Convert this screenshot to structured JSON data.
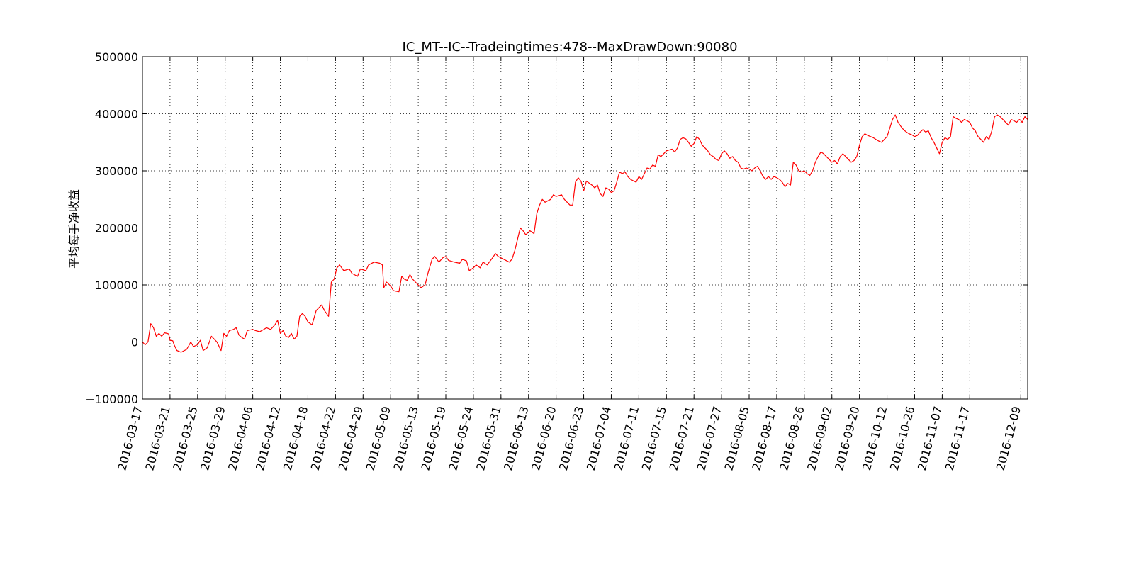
{
  "chart_data": {
    "type": "line",
    "title": "IC_MT--IC--Tradeingtimes:478--MaxDrawDown:90080",
    "xlabel": "",
    "ylabel": "平均每手净收益",
    "ylim": [
      -100000,
      500000
    ],
    "grid": true,
    "y_tick_labels": [
      "−100000",
      "0",
      "100000",
      "200000",
      "300000",
      "400000",
      "500000"
    ],
    "x_tick_labels": [
      "2016-03-17",
      "2016-03-21",
      "2016-03-25",
      "2016-03-29",
      "2016-04-06",
      "2016-04-12",
      "2016-04-18",
      "2016-04-22",
      "2016-04-29",
      "2016-05-09",
      "2016-05-13",
      "2016-05-19",
      "2016-05-24",
      "2016-05-31",
      "2016-06-13",
      "2016-06-20",
      "2016-06-23",
      "2016-07-04",
      "2016-07-11",
      "2016-07-15",
      "2016-07-21",
      "2016-07-27",
      "2016-08-05",
      "2016-08-17",
      "2016-08-26",
      "2016-09-02",
      "2016-09-20",
      "2016-10-12",
      "2016-10-26",
      "2016-11-07",
      "2016-11-17",
      "2016-12-09"
    ],
    "x_ticks_at_index": [
      0,
      20,
      40,
      60,
      80,
      100,
      120,
      140,
      160,
      180,
      200,
      220,
      240,
      260,
      280,
      300,
      320,
      340,
      360,
      380,
      400,
      420,
      440,
      460,
      480,
      500,
      520,
      540,
      560,
      580,
      600,
      637
    ],
    "x_range": [
      0,
      642
    ],
    "series": [
      {
        "color": "#ff0000",
        "anchors": [
          [
            0,
            0
          ],
          [
            2,
            -5000
          ],
          [
            4,
            0
          ],
          [
            6,
            32000
          ],
          [
            8,
            25000
          ],
          [
            10,
            10000
          ],
          [
            12,
            15000
          ],
          [
            14,
            10000
          ],
          [
            16,
            16000
          ],
          [
            18,
            15000
          ],
          [
            19,
            14000
          ],
          [
            20,
            3000
          ],
          [
            22,
            2000
          ],
          [
            23,
            -5000
          ],
          [
            25,
            -15000
          ],
          [
            28,
            -18000
          ],
          [
            32,
            -13000
          ],
          [
            34,
            -5000
          ],
          [
            35,
            0
          ],
          [
            37,
            -8000
          ],
          [
            40,
            -5000
          ],
          [
            42,
            3000
          ],
          [
            44,
            -15000
          ],
          [
            47,
            -10000
          ],
          [
            50,
            10000
          ],
          [
            54,
            0
          ],
          [
            57,
            -15000
          ],
          [
            59,
            15000
          ],
          [
            61,
            10000
          ],
          [
            63,
            20000
          ],
          [
            66,
            22000
          ],
          [
            68,
            25000
          ],
          [
            70,
            12000
          ],
          [
            72,
            8000
          ],
          [
            74,
            5000
          ],
          [
            76,
            20000
          ],
          [
            80,
            22000
          ],
          [
            82,
            20000
          ],
          [
            85,
            18000
          ],
          [
            88,
            22000
          ],
          [
            90,
            25000
          ],
          [
            93,
            22000
          ],
          [
            96,
            30000
          ],
          [
            98,
            38000
          ],
          [
            100,
            15000
          ],
          [
            102,
            20000
          ],
          [
            104,
            10000
          ],
          [
            106,
            8000
          ],
          [
            108,
            15000
          ],
          [
            110,
            5000
          ],
          [
            112,
            10000
          ],
          [
            114,
            45000
          ],
          [
            116,
            50000
          ],
          [
            118,
            45000
          ],
          [
            120,
            35000
          ],
          [
            123,
            30000
          ],
          [
            126,
            55000
          ],
          [
            128,
            60000
          ],
          [
            130,
            65000
          ],
          [
            132,
            55000
          ],
          [
            135,
            45000
          ],
          [
            137,
            105000
          ],
          [
            139,
            110000
          ],
          [
            141,
            130000
          ],
          [
            143,
            135000
          ],
          [
            146,
            125000
          ],
          [
            150,
            128000
          ],
          [
            152,
            120000
          ],
          [
            156,
            115000
          ],
          [
            158,
            128000
          ],
          [
            162,
            125000
          ],
          [
            164,
            135000
          ],
          [
            168,
            140000
          ],
          [
            172,
            138000
          ],
          [
            174,
            135000
          ],
          [
            175,
            95000
          ],
          [
            177,
            105000
          ],
          [
            180,
            98000
          ],
          [
            182,
            90000
          ],
          [
            186,
            88000
          ],
          [
            188,
            115000
          ],
          [
            190,
            110000
          ],
          [
            192,
            108000
          ],
          [
            194,
            118000
          ],
          [
            196,
            110000
          ],
          [
            198,
            105000
          ],
          [
            200,
            100000
          ],
          [
            202,
            95000
          ],
          [
            205,
            100000
          ],
          [
            207,
            120000
          ],
          [
            210,
            145000
          ],
          [
            212,
            150000
          ],
          [
            215,
            140000
          ],
          [
            218,
            148000
          ],
          [
            220,
            150000
          ],
          [
            222,
            143000
          ],
          [
            226,
            140000
          ],
          [
            230,
            138000
          ],
          [
            232,
            145000
          ],
          [
            235,
            142000
          ],
          [
            237,
            125000
          ],
          [
            240,
            130000
          ],
          [
            242,
            135000
          ],
          [
            245,
            130000
          ],
          [
            247,
            140000
          ],
          [
            250,
            135000
          ],
          [
            254,
            148000
          ],
          [
            256,
            155000
          ],
          [
            258,
            150000
          ],
          [
            262,
            145000
          ],
          [
            266,
            140000
          ],
          [
            268,
            145000
          ],
          [
            270,
            160000
          ],
          [
            272,
            180000
          ],
          [
            274,
            200000
          ],
          [
            276,
            195000
          ],
          [
            278,
            188000
          ],
          [
            281,
            195000
          ],
          [
            284,
            190000
          ],
          [
            286,
            225000
          ],
          [
            288,
            240000
          ],
          [
            290,
            250000
          ],
          [
            292,
            245000
          ],
          [
            296,
            250000
          ],
          [
            298,
            258000
          ],
          [
            300,
            255000
          ],
          [
            304,
            258000
          ],
          [
            306,
            250000
          ],
          [
            308,
            245000
          ],
          [
            310,
            240000
          ],
          [
            312,
            240000
          ],
          [
            314,
            280000
          ],
          [
            316,
            288000
          ],
          [
            318,
            282000
          ],
          [
            320,
            265000
          ],
          [
            322,
            282000
          ],
          [
            326,
            275000
          ],
          [
            328,
            270000
          ],
          [
            330,
            275000
          ],
          [
            332,
            260000
          ],
          [
            334,
            255000
          ],
          [
            336,
            270000
          ],
          [
            338,
            268000
          ],
          [
            340,
            262000
          ],
          [
            342,
            265000
          ],
          [
            344,
            280000
          ],
          [
            346,
            298000
          ],
          [
            348,
            295000
          ],
          [
            350,
            298000
          ],
          [
            352,
            290000
          ],
          [
            354,
            285000
          ],
          [
            358,
            280000
          ],
          [
            360,
            290000
          ],
          [
            362,
            285000
          ],
          [
            364,
            295000
          ],
          [
            366,
            305000
          ],
          [
            368,
            303000
          ],
          [
            370,
            310000
          ],
          [
            372,
            308000
          ],
          [
            374,
            328000
          ],
          [
            376,
            325000
          ],
          [
            378,
            330000
          ],
          [
            380,
            335000
          ],
          [
            384,
            338000
          ],
          [
            386,
            333000
          ],
          [
            388,
            340000
          ],
          [
            390,
            355000
          ],
          [
            392,
            358000
          ],
          [
            394,
            356000
          ],
          [
            396,
            350000
          ],
          [
            398,
            343000
          ],
          [
            400,
            348000
          ],
          [
            402,
            360000
          ],
          [
            404,
            355000
          ],
          [
            406,
            345000
          ],
          [
            408,
            340000
          ],
          [
            410,
            335000
          ],
          [
            412,
            328000
          ],
          [
            414,
            325000
          ],
          [
            416,
            320000
          ],
          [
            418,
            318000
          ],
          [
            420,
            330000
          ],
          [
            422,
            335000
          ],
          [
            424,
            330000
          ],
          [
            426,
            322000
          ],
          [
            428,
            325000
          ],
          [
            430,
            318000
          ],
          [
            432,
            315000
          ],
          [
            434,
            305000
          ],
          [
            436,
            303000
          ],
          [
            438,
            305000
          ],
          [
            440,
            303000
          ],
          [
            442,
            300000
          ],
          [
            444,
            305000
          ],
          [
            446,
            308000
          ],
          [
            448,
            300000
          ],
          [
            450,
            290000
          ],
          [
            452,
            285000
          ],
          [
            454,
            290000
          ],
          [
            456,
            285000
          ],
          [
            458,
            290000
          ],
          [
            460,
            288000
          ],
          [
            462,
            285000
          ],
          [
            464,
            280000
          ],
          [
            466,
            272000
          ],
          [
            468,
            278000
          ],
          [
            470,
            275000
          ],
          [
            472,
            315000
          ],
          [
            474,
            310000
          ],
          [
            476,
            300000
          ],
          [
            478,
            298000
          ],
          [
            480,
            300000
          ],
          [
            482,
            295000
          ],
          [
            484,
            292000
          ],
          [
            486,
            300000
          ],
          [
            488,
            315000
          ],
          [
            490,
            325000
          ],
          [
            492,
            333000
          ],
          [
            494,
            330000
          ],
          [
            496,
            325000
          ],
          [
            498,
            320000
          ],
          [
            500,
            315000
          ],
          [
            502,
            318000
          ],
          [
            504,
            312000
          ],
          [
            506,
            325000
          ],
          [
            508,
            330000
          ],
          [
            510,
            325000
          ],
          [
            512,
            320000
          ],
          [
            514,
            315000
          ],
          [
            516,
            318000
          ],
          [
            518,
            325000
          ],
          [
            520,
            345000
          ],
          [
            522,
            360000
          ],
          [
            524,
            365000
          ],
          [
            526,
            362000
          ],
          [
            528,
            360000
          ],
          [
            530,
            358000
          ],
          [
            532,
            355000
          ],
          [
            534,
            352000
          ],
          [
            536,
            350000
          ],
          [
            538,
            355000
          ],
          [
            540,
            360000
          ],
          [
            542,
            375000
          ],
          [
            544,
            390000
          ],
          [
            546,
            398000
          ],
          [
            548,
            385000
          ],
          [
            550,
            378000
          ],
          [
            552,
            372000
          ],
          [
            554,
            368000
          ],
          [
            556,
            365000
          ],
          [
            558,
            363000
          ],
          [
            560,
            360000
          ],
          [
            562,
            362000
          ],
          [
            564,
            368000
          ],
          [
            566,
            372000
          ],
          [
            568,
            368000
          ],
          [
            570,
            370000
          ],
          [
            572,
            358000
          ],
          [
            574,
            350000
          ],
          [
            576,
            340000
          ],
          [
            578,
            330000
          ],
          [
            580,
            350000
          ],
          [
            582,
            358000
          ],
          [
            584,
            355000
          ],
          [
            586,
            360000
          ],
          [
            588,
            395000
          ],
          [
            590,
            392000
          ],
          [
            592,
            390000
          ],
          [
            594,
            385000
          ],
          [
            596,
            390000
          ],
          [
            598,
            388000
          ],
          [
            600,
            385000
          ],
          [
            602,
            375000
          ],
          [
            604,
            370000
          ],
          [
            606,
            360000
          ],
          [
            608,
            355000
          ],
          [
            610,
            350000
          ],
          [
            612,
            360000
          ],
          [
            614,
            355000
          ],
          [
            616,
            370000
          ],
          [
            618,
            395000
          ],
          [
            620,
            398000
          ],
          [
            622,
            395000
          ],
          [
            624,
            390000
          ],
          [
            626,
            385000
          ],
          [
            628,
            380000
          ],
          [
            630,
            390000
          ],
          [
            632,
            388000
          ],
          [
            634,
            385000
          ],
          [
            636,
            390000
          ],
          [
            637,
            388000
          ],
          [
            638,
            385000
          ],
          [
            640,
            395000
          ],
          [
            642,
            390000
          ]
        ]
      }
    ]
  }
}
